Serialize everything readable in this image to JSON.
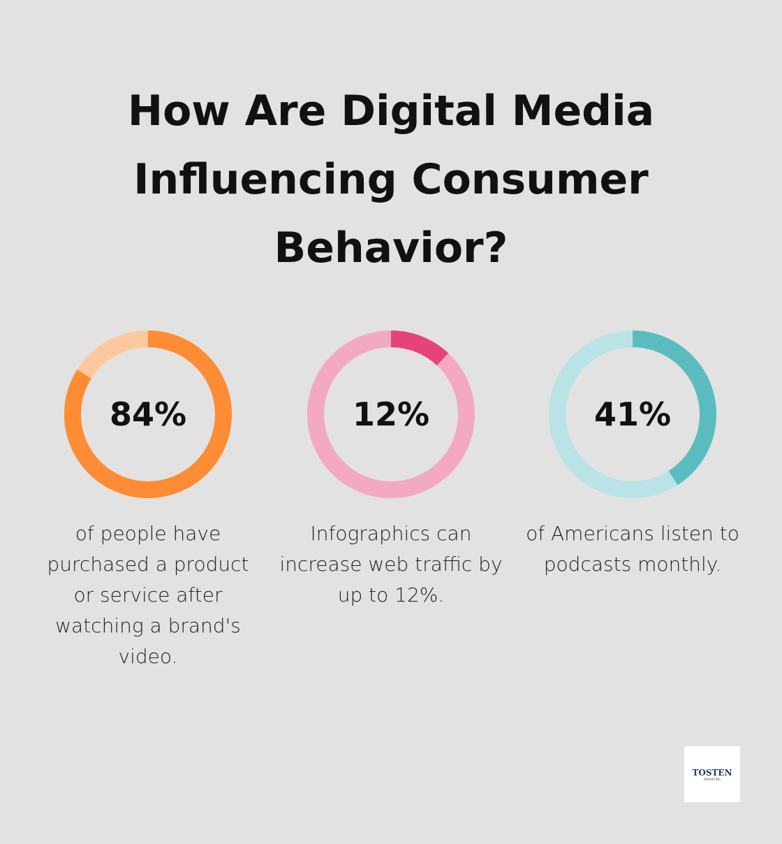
{
  "title": "How Are Digital Media Influencing Consumer Behavior?",
  "chart_data": [
    {
      "type": "donut",
      "values": [
        84
      ],
      "value_labels": [
        "84%"
      ],
      "color": "#fd8c35",
      "track_color": "#fdc89e",
      "description": "of people have purchased a product or service after watching a brand's video."
    },
    {
      "type": "donut",
      "values": [
        12
      ],
      "value_labels": [
        "12%"
      ],
      "color": "#e5437a",
      "track_color": "#f2a9c1",
      "description": "Infographics can increase web traffic by up to 12%."
    },
    {
      "type": "donut",
      "values": [
        41
      ],
      "value_labels": [
        "41%"
      ],
      "color": "#5bbcc0",
      "track_color": "#b9e3e6",
      "description": "of Americans listen to podcasts monthly."
    }
  ],
  "logo": {
    "name": "TOSTEN",
    "tagline": "MARKETING"
  }
}
